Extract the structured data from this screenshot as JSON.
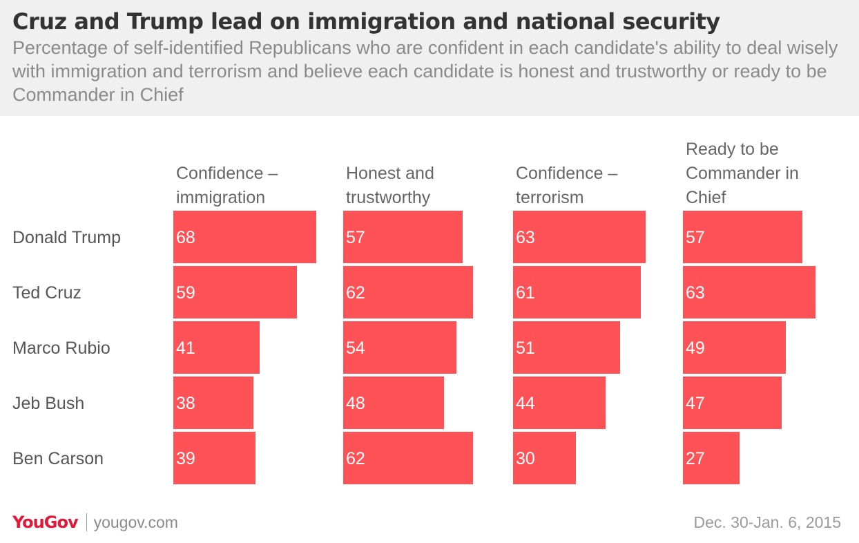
{
  "title": "Cruz and Trump lead on immigration and national security",
  "subtitle": "Percentage of self-identified Republicans who are confident in each candidate's ability to deal wisely with immigration and terrorism and believe each candidate is honest and trustworthy or ready to be Commander in Chief",
  "footer": {
    "logo": "YouGov",
    "site": "yougov.com",
    "date": "Dec. 30-Jan. 6, 2015"
  },
  "colors": {
    "bar": "#ff5257",
    "value_text": "#ffffff",
    "header_bg": "#f0f0f0"
  },
  "chart_data": {
    "type": "bar",
    "orientation": "horizontal",
    "categories": [
      "Donald Trump",
      "Ted Cruz",
      "Marco Rubio",
      "Jeb Bush",
      "Ben Carson"
    ],
    "series": [
      {
        "name": "Confidence –\nimmigration",
        "values": [
          68,
          59,
          41,
          38,
          39
        ]
      },
      {
        "name": "Honest and\ntrustworthy",
        "values": [
          57,
          62,
          54,
          48,
          62
        ]
      },
      {
        "name": "Confidence –\nterrorism",
        "values": [
          63,
          61,
          51,
          44,
          30
        ]
      },
      {
        "name": "Ready to be\nCommander in\nChief",
        "values": [
          57,
          63,
          49,
          47,
          27
        ]
      }
    ],
    "units": "percent",
    "grid": false,
    "legend": "none"
  }
}
